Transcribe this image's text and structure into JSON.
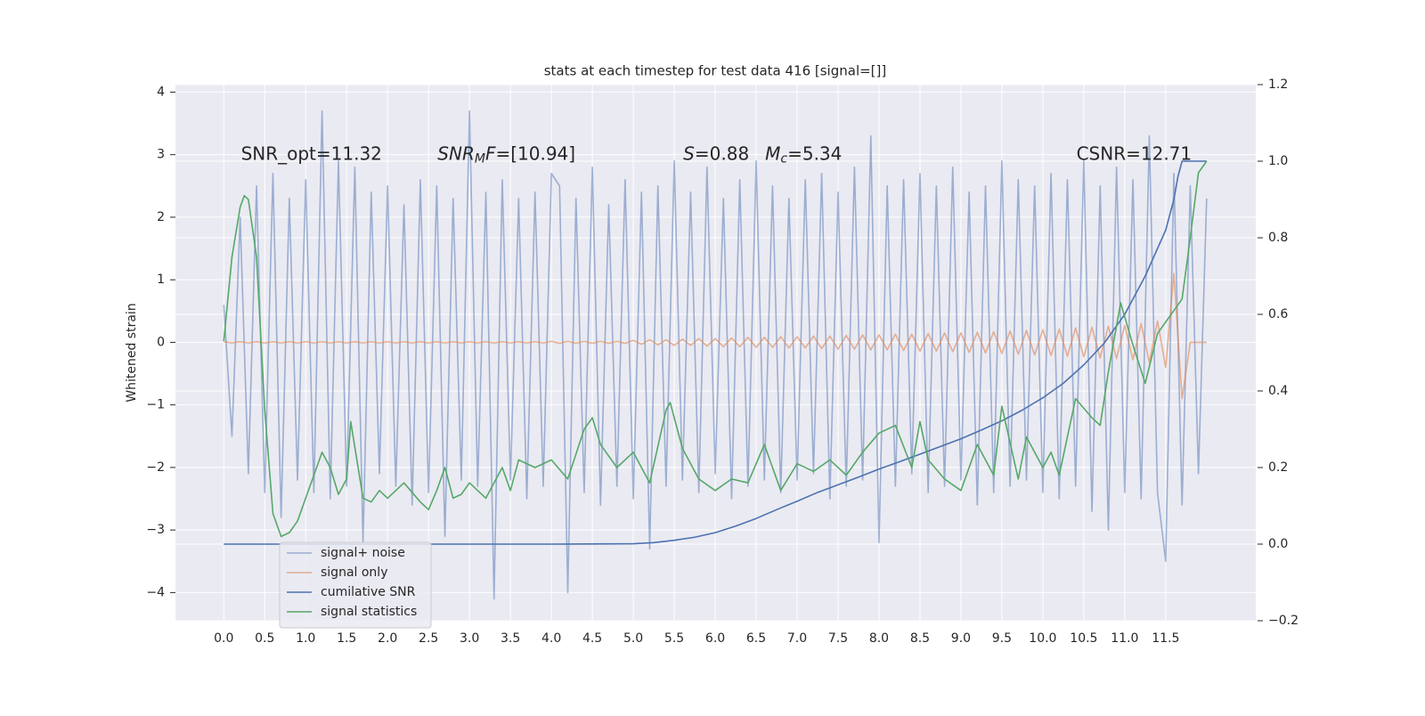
{
  "chart_data": {
    "type": "line",
    "title": "stats at each timestep for test data 416 [signal=[]]",
    "ylabel": "Whitened strain",
    "xlim": [
      -0.59,
      12.6
    ],
    "ylim": [
      -4.45,
      4.12
    ],
    "y2lim": [
      -0.2,
      1.2
    ],
    "xticks": [
      {
        "value": 0,
        "label": "0.0"
      },
      0.5,
      {
        "value": 1,
        "label": "1.0"
      },
      1.5,
      {
        "value": 2,
        "label": "2.0"
      },
      2.5,
      {
        "value": 3,
        "label": "3.0"
      },
      3.5,
      {
        "value": 4,
        "label": "4.0"
      },
      4.5,
      {
        "value": 5,
        "label": "5.0"
      },
      5.5,
      {
        "value": 6,
        "label": "6.0"
      },
      6.5,
      {
        "value": 7,
        "label": "7.0"
      },
      7.5,
      {
        "value": 8,
        "label": "8.0"
      },
      8.5,
      {
        "value": 9,
        "label": "9.0"
      },
      9.5,
      {
        "value": 10,
        "label": "10.0"
      },
      10.5,
      {
        "value": 11,
        "label": "11.0"
      },
      11.5
    ],
    "yticks": [
      {
        "value": -4,
        "label": "−4"
      },
      {
        "value": -3,
        "label": "−3"
      },
      {
        "value": -2,
        "label": "−2"
      },
      {
        "value": -1,
        "label": "−1"
      },
      0,
      1,
      2,
      3,
      4
    ],
    "y2ticks": [
      {
        "value": -0.2,
        "label": "−0.2"
      },
      {
        "value": 0,
        "label": "0.0"
      },
      0.2,
      0.4,
      0.6,
      0.8,
      {
        "value": 1,
        "label": "1.0"
      },
      1.2
    ],
    "grid": true,
    "y2grid": true,
    "background": "#eaeaf2",
    "legend_loc": "lower left",
    "annotations": [
      {
        "x": 0.21,
        "y": 3.0,
        "parts": [
          {
            "text": "SNR_opt=11.32"
          }
        ]
      },
      {
        "x": 2.61,
        "y": 3.0,
        "parts": [
          {
            "text": "SNR",
            "italic": true
          },
          {
            "text": "M",
            "italic": true,
            "sub": true
          },
          {
            "text": "F",
            "italic": true
          },
          {
            "text": "=[10.94]"
          }
        ]
      },
      {
        "x": 5.61,
        "y": 3.0,
        "parts": [
          {
            "text": "S",
            "italic": true
          },
          {
            "text": "=0.88"
          }
        ]
      },
      {
        "x": 6.61,
        "y": 3.0,
        "parts": [
          {
            "text": "M",
            "italic": true
          },
          {
            "text": "c",
            "italic": true,
            "sub": true
          },
          {
            "text": "=5.34"
          }
        ]
      },
      {
        "x": 10.41,
        "y": 3.0,
        "parts": [
          {
            "text": "CSNR=12.71"
          }
        ]
      }
    ],
    "series": [
      {
        "name": "signal+ noise",
        "color": "#4c72b0",
        "opacity": 0.5,
        "x": [
          0,
          0.1,
          0.2,
          0.3,
          0.4,
          0.5,
          0.6,
          0.7,
          0.8,
          0.9,
          1,
          1.1,
          1.2,
          1.3,
          1.4,
          1.5,
          1.6,
          1.7,
          1.8,
          1.9,
          2,
          2.1,
          2.2,
          2.3,
          2.4,
          2.5,
          2.6,
          2.7,
          2.8,
          2.9,
          3,
          3.1,
          3.2,
          3.3,
          3.4,
          3.5,
          3.6,
          3.7,
          3.8,
          3.9,
          4,
          4.1,
          4.2,
          4.3,
          4.4,
          4.5,
          4.6,
          4.7,
          4.8,
          4.9,
          5,
          5.1,
          5.2,
          5.3,
          5.4,
          5.5,
          5.6,
          5.7,
          5.8,
          5.9,
          6,
          6.1,
          6.2,
          6.3,
          6.4,
          6.5,
          6.6,
          6.7,
          6.8,
          6.9,
          7,
          7.1,
          7.2,
          7.3,
          7.4,
          7.5,
          7.6,
          7.7,
          7.8,
          7.9,
          8,
          8.1,
          8.2,
          8.3,
          8.4,
          8.5,
          8.6,
          8.7,
          8.8,
          8.9,
          9,
          9.1,
          9.2,
          9.3,
          9.4,
          9.5,
          9.6,
          9.7,
          9.8,
          9.9,
          10,
          10.1,
          10.2,
          10.3,
          10.4,
          10.5,
          10.6,
          10.7,
          10.8,
          10.9,
          11,
          11.1,
          11.2,
          11.3,
          11.4,
          11.5,
          11.6,
          11.7,
          11.8,
          11.9,
          12
        ],
        "values": [
          0.6,
          -1.5,
          2.0,
          -2.1,
          2.5,
          -2.4,
          2.7,
          -2.8,
          2.3,
          -2.2,
          2.6,
          -2.4,
          3.7,
          -2.5,
          2.9,
          -2.3,
          2.8,
          -3.2,
          2.4,
          -2.1,
          2.5,
          -2.3,
          2.2,
          -2.6,
          2.6,
          -2.4,
          2.5,
          -3.1,
          2.3,
          -2.2,
          3.7,
          -2.3,
          2.4,
          -4.1,
          2.6,
          -2.2,
          2.3,
          -2.5,
          2.4,
          -2.3,
          2.7,
          2.5,
          -4.0,
          2.3,
          -2.4,
          2.8,
          -2.6,
          2.2,
          -2.3,
          2.6,
          -2.5,
          2.4,
          -3.3,
          2.5,
          -2.3,
          2.9,
          -2.2,
          2.4,
          -2.4,
          2.8,
          -2.1,
          2.3,
          -2.5,
          2.6,
          -2.3,
          2.9,
          -2.2,
          2.5,
          -2.4,
          2.3,
          -2.2,
          2.6,
          -2.1,
          2.7,
          -2.5,
          2.4,
          -2.3,
          2.8,
          -2.2,
          3.3,
          -3.2,
          2.5,
          -2.3,
          2.6,
          -2.1,
          2.7,
          -2.4,
          2.5,
          -2.3,
          2.8,
          -2.2,
          2.4,
          -2.6,
          2.5,
          -2.4,
          2.9,
          -2.3,
          2.6,
          -2.2,
          2.5,
          -2.4,
          2.7,
          -2.5,
          2.6,
          -2.3,
          2.9,
          -2.7,
          2.5,
          -3.0,
          2.8,
          -2.4,
          2.6,
          -2.5,
          3.3,
          -2.4,
          -3.5,
          2.7,
          -2.6,
          2.5,
          -2.1,
          2.3
        ]
      },
      {
        "name": "signal only",
        "color": "#dd8452",
        "opacity": 0.6,
        "x": [
          0,
          0.1,
          0.2,
          0.3,
          0.4,
          0.5,
          0.6,
          0.7,
          0.8,
          0.9,
          1,
          1.1,
          1.2,
          1.3,
          1.4,
          1.5,
          1.6,
          1.7,
          1.8,
          1.9,
          2,
          2.1,
          2.2,
          2.3,
          2.4,
          2.5,
          2.6,
          2.7,
          2.8,
          2.9,
          3,
          3.1,
          3.2,
          3.3,
          3.4,
          3.5,
          3.6,
          3.7,
          3.8,
          3.9,
          4,
          4.1,
          4.2,
          4.3,
          4.4,
          4.5,
          4.6,
          4.7,
          4.8,
          4.9,
          5,
          5.1,
          5.2,
          5.3,
          5.4,
          5.5,
          5.6,
          5.7,
          5.8,
          5.9,
          6,
          6.1,
          6.2,
          6.3,
          6.4,
          6.5,
          6.6,
          6.7,
          6.8,
          6.9,
          7,
          7.1,
          7.2,
          7.3,
          7.4,
          7.5,
          7.6,
          7.7,
          7.8,
          7.9,
          8,
          8.1,
          8.2,
          8.3,
          8.4,
          8.5,
          8.6,
          8.7,
          8.8,
          8.9,
          9,
          9.1,
          9.2,
          9.3,
          9.4,
          9.5,
          9.6,
          9.7,
          9.8,
          9.9,
          10,
          10.1,
          10.2,
          10.3,
          10.4,
          10.5,
          10.6,
          10.7,
          10.8,
          10.9,
          11,
          11.1,
          11.2,
          11.3,
          11.4,
          11.5,
          11.6,
          11.7,
          11.8,
          11.9,
          12
        ],
        "values": [
          0.01,
          -0.01,
          0.01,
          -0.01,
          0.01,
          -0.01,
          0.01,
          -0.01,
          0.01,
          -0.01,
          0.01,
          -0.01,
          0.01,
          -0.01,
          0.01,
          -0.01,
          0.01,
          -0.01,
          0.01,
          -0.01,
          0.01,
          -0.01,
          0.01,
          -0.01,
          0.01,
          -0.01,
          0.01,
          -0.01,
          0.01,
          -0.01,
          0.01,
          -0.01,
          0.01,
          -0.01,
          0.01,
          -0.01,
          0.01,
          -0.01,
          0.01,
          -0.01,
          0.015,
          -0.015,
          0.015,
          -0.015,
          0.015,
          -0.015,
          0.015,
          -0.015,
          0.015,
          -0.015,
          0.03,
          -0.03,
          0.04,
          -0.04,
          0.04,
          -0.05,
          0.05,
          -0.05,
          0.06,
          -0.06,
          0.06,
          -0.07,
          0.07,
          -0.07,
          0.08,
          -0.08,
          0.08,
          -0.08,
          0.09,
          -0.09,
          0.09,
          -0.09,
          0.1,
          -0.1,
          0.1,
          -0.11,
          0.11,
          -0.11,
          0.12,
          -0.12,
          0.12,
          -0.12,
          0.13,
          -0.13,
          0.13,
          -0.14,
          0.14,
          -0.14,
          0.15,
          -0.15,
          0.15,
          -0.16,
          0.16,
          -0.17,
          0.17,
          -0.18,
          0.18,
          -0.19,
          0.19,
          -0.2,
          0.2,
          -0.21,
          0.21,
          -0.22,
          0.23,
          -0.23,
          0.24,
          -0.25,
          0.26,
          -0.26,
          0.27,
          -0.28,
          0.3,
          -0.32,
          0.34,
          -0.4,
          1.1,
          -0.9,
          0,
          0,
          0
        ]
      },
      {
        "name": "cumilative SNR",
        "color": "#4c72b0",
        "axis": "y2",
        "x": [
          0,
          1,
          2,
          3,
          4,
          5,
          5.25,
          5.5,
          5.75,
          6,
          6.25,
          6.5,
          6.75,
          7,
          7.25,
          7.5,
          7.75,
          8,
          8.25,
          8.5,
          8.75,
          9,
          9.25,
          9.5,
          9.75,
          10,
          10.25,
          10.5,
          10.75,
          11,
          11.25,
          11.5,
          11.6,
          11.65,
          11.7,
          12
        ],
        "values": [
          0,
          0,
          0,
          0,
          0,
          0.001,
          0.004,
          0.01,
          0.018,
          0.03,
          0.047,
          0.067,
          0.09,
          0.112,
          0.135,
          0.155,
          0.175,
          0.196,
          0.215,
          0.235,
          0.255,
          0.275,
          0.298,
          0.322,
          0.35,
          0.382,
          0.42,
          0.468,
          0.525,
          0.6,
          0.7,
          0.82,
          0.9,
          0.96,
          1.0,
          1.0
        ]
      },
      {
        "name": "signal statistics",
        "color": "#55a868",
        "axis": "y2",
        "x": [
          0,
          0.1,
          0.2,
          0.25,
          0.3,
          0.4,
          0.5,
          0.6,
          0.7,
          0.8,
          0.9,
          1.0,
          1.1,
          1.2,
          1.3,
          1.4,
          1.5,
          1.55,
          1.7,
          1.8,
          1.9,
          2.0,
          2.2,
          2.4,
          2.5,
          2.6,
          2.7,
          2.8,
          2.9,
          3.0,
          3.2,
          3.4,
          3.5,
          3.6,
          3.8,
          4.0,
          4.2,
          4.4,
          4.5,
          4.6,
          4.8,
          5.0,
          5.2,
          5.4,
          5.45,
          5.6,
          5.8,
          6.0,
          6.2,
          6.4,
          6.6,
          6.8,
          7.0,
          7.2,
          7.4,
          7.6,
          7.8,
          8.0,
          8.2,
          8.4,
          8.5,
          8.6,
          8.8,
          9.0,
          9.2,
          9.4,
          9.5,
          9.7,
          9.8,
          10.0,
          10.1,
          10.2,
          10.4,
          10.6,
          10.7,
          10.8,
          10.95,
          11.1,
          11.25,
          11.4,
          11.6,
          11.7,
          11.8,
          11.9,
          12.0
        ],
        "values": [
          0.53,
          0.75,
          0.88,
          0.91,
          0.9,
          0.75,
          0.35,
          0.08,
          0.02,
          0.03,
          0.06,
          0.12,
          0.18,
          0.24,
          0.2,
          0.13,
          0.17,
          0.32,
          0.12,
          0.11,
          0.14,
          0.12,
          0.16,
          0.11,
          0.09,
          0.14,
          0.2,
          0.12,
          0.13,
          0.16,
          0.12,
          0.2,
          0.14,
          0.22,
          0.2,
          0.22,
          0.17,
          0.3,
          0.33,
          0.26,
          0.2,
          0.24,
          0.16,
          0.35,
          0.37,
          0.25,
          0.17,
          0.14,
          0.17,
          0.16,
          0.26,
          0.14,
          0.21,
          0.19,
          0.22,
          0.18,
          0.24,
          0.29,
          0.31,
          0.2,
          0.32,
          0.22,
          0.17,
          0.14,
          0.26,
          0.18,
          0.36,
          0.17,
          0.28,
          0.2,
          0.24,
          0.18,
          0.38,
          0.33,
          0.31,
          0.45,
          0.63,
          0.52,
          0.42,
          0.55,
          0.61,
          0.64,
          0.8,
          0.97,
          1.0
        ]
      }
    ]
  }
}
